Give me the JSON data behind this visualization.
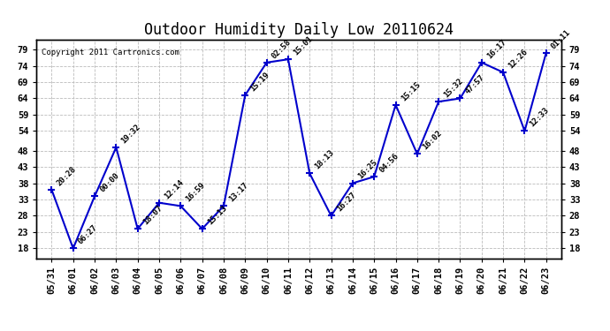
{
  "title": "Outdoor Humidity Daily Low 20110624",
  "copyright": "Copyright 2011 Cartronics.com",
  "x_labels": [
    "05/31",
    "06/01",
    "06/02",
    "06/03",
    "06/04",
    "06/05",
    "06/06",
    "06/07",
    "06/08",
    "06/09",
    "06/10",
    "06/11",
    "06/12",
    "06/13",
    "06/14",
    "06/15",
    "06/16",
    "06/17",
    "06/18",
    "06/19",
    "06/20",
    "06/21",
    "06/22",
    "06/23"
  ],
  "y_values": [
    36,
    18,
    34,
    49,
    24,
    32,
    31,
    24,
    31,
    65,
    75,
    76,
    41,
    28,
    38,
    40,
    62,
    47,
    63,
    64,
    75,
    72,
    54,
    78
  ],
  "point_labels": [
    "20:28",
    "06:27",
    "00:00",
    "19:32",
    "18:07",
    "12:14",
    "16:59",
    "15:13",
    "13:17",
    "15:19",
    "02:58",
    "15:01",
    "18:13",
    "16:27",
    "16:25",
    "04:56",
    "15:15",
    "16:02",
    "15:32",
    "47:57",
    "16:17",
    "12:26",
    "12:33",
    "01:11"
  ],
  "y_ticks": [
    18,
    23,
    28,
    33,
    38,
    43,
    48,
    54,
    59,
    64,
    69,
    74,
    79
  ],
  "ylim": [
    15,
    82
  ],
  "xlim": [
    -0.7,
    23.7
  ],
  "line_color": "#0000cc",
  "marker_color": "#0000cc",
  "marker": "+",
  "marker_size": 6,
  "marker_linewidth": 1.5,
  "line_width": 1.5,
  "background_color": "#ffffff",
  "grid_color": "#bbbbbb",
  "grid_linestyle": "--",
  "label_fontsize": 6.5,
  "tick_fontsize": 7.5,
  "title_fontsize": 12,
  "copyright_fontsize": 6.5,
  "annotation_fontsize": 6.5,
  "annotation_rotation": 45,
  "border_color": "#000000"
}
